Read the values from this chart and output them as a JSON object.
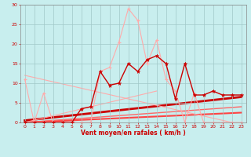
{
  "xlabel": "Vent moyen/en rafales ( km/h )",
  "xlim": [
    -0.5,
    23.5
  ],
  "ylim": [
    0,
    30
  ],
  "xticks": [
    0,
    1,
    2,
    3,
    4,
    5,
    6,
    7,
    8,
    9,
    10,
    11,
    12,
    13,
    14,
    15,
    16,
    17,
    18,
    19,
    20,
    21,
    22,
    23
  ],
  "yticks": [
    0,
    5,
    10,
    15,
    20,
    25,
    30
  ],
  "bg_color": "#c8eeee",
  "grid_color": "#a0c8c8",
  "light_x": [
    0,
    1,
    2,
    3,
    4,
    5,
    6,
    7,
    8,
    9,
    10,
    11,
    12,
    13,
    14,
    15,
    16,
    17,
    18,
    19,
    20,
    21,
    22,
    23
  ],
  "light_y": [
    11,
    0,
    7.5,
    0,
    0,
    0,
    0,
    0,
    13,
    14,
    20.5,
    29,
    26,
    15,
    21,
    11,
    8,
    0,
    7.5,
    0,
    0,
    0,
    0,
    0
  ],
  "dark_x": [
    0,
    1,
    2,
    3,
    4,
    5,
    6,
    7,
    8,
    9,
    10,
    11,
    12,
    13,
    14,
    15,
    16,
    17,
    18,
    19,
    20,
    21,
    22,
    23
  ],
  "dark_y": [
    0,
    0,
    0,
    0,
    0,
    0,
    3.5,
    4,
    13,
    9.5,
    10,
    15,
    13,
    16,
    17,
    15,
    6,
    15,
    7,
    7,
    8,
    7,
    7,
    7
  ],
  "trend_lines": [
    {
      "x": [
        0,
        23
      ],
      "y": [
        0,
        2.5
      ],
      "color": "#ff4444",
      "lw": 1.5
    },
    {
      "x": [
        0,
        23
      ],
      "y": [
        0.5,
        6.5
      ],
      "color": "#cc0000",
      "lw": 2.0
    },
    {
      "x": [
        0,
        14
      ],
      "y": [
        0,
        8
      ],
      "color": "#ffaaaa",
      "lw": 0.8
    },
    {
      "x": [
        0,
        22
      ],
      "y": [
        12,
        0
      ],
      "color": "#ffaaaa",
      "lw": 0.8
    },
    {
      "x": [
        0,
        23
      ],
      "y": [
        0,
        4
      ],
      "color": "#ff6666",
      "lw": 1.0
    }
  ],
  "light_color": "#ffaaaa",
  "dark_color": "#cc0000"
}
